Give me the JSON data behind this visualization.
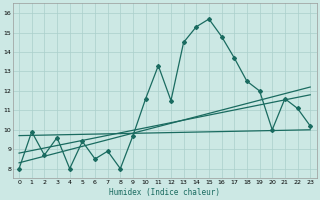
{
  "xlabel": "Humidex (Indice chaleur)",
  "background_color": "#cce8e4",
  "grid_color": "#aacfcb",
  "line_color": "#1a6b60",
  "xlim": [
    -0.5,
    23.5
  ],
  "ylim": [
    7.5,
    16.5
  ],
  "xticks": [
    0,
    1,
    2,
    3,
    4,
    5,
    6,
    7,
    8,
    9,
    10,
    11,
    12,
    13,
    14,
    15,
    16,
    17,
    18,
    19,
    20,
    21,
    22,
    23
  ],
  "yticks": [
    8,
    9,
    10,
    11,
    12,
    13,
    14,
    15,
    16
  ],
  "zigzag_x": [
    0,
    1,
    2,
    3,
    4,
    5,
    6,
    7,
    8,
    9,
    10,
    11,
    12,
    13,
    14,
    15,
    16,
    17,
    18,
    19,
    20,
    21,
    22,
    23
  ],
  "zigzag_y": [
    8.0,
    9.9,
    8.7,
    9.6,
    8.0,
    9.4,
    8.5,
    8.9,
    8.0,
    9.7,
    11.6,
    13.3,
    11.5,
    14.5,
    15.3,
    15.7,
    14.8,
    13.7,
    12.5,
    12.0,
    10.0,
    11.6,
    11.1,
    10.2
  ],
  "flat_line_x": [
    0,
    23
  ],
  "flat_line_y": [
    9.7,
    10.0
  ],
  "diag_line1_x": [
    0,
    23
  ],
  "diag_line1_y": [
    8.8,
    11.8
  ],
  "diag_line2_x": [
    0,
    23
  ],
  "diag_line2_y": [
    8.3,
    12.2
  ]
}
